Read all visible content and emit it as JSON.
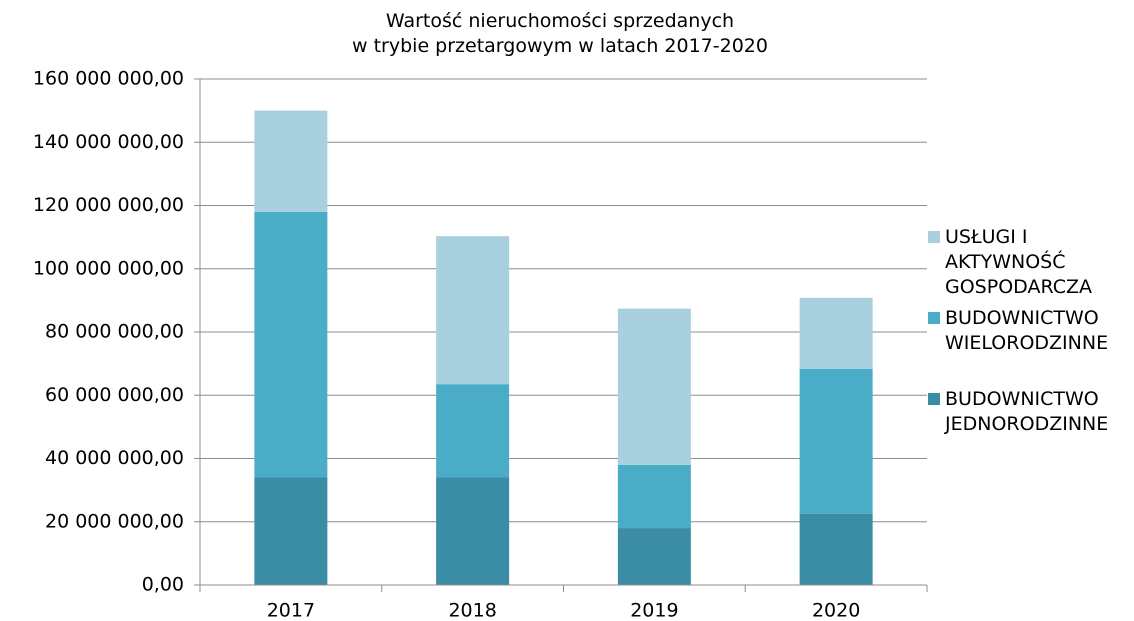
{
  "chart_data": {
    "type": "stacked_bar",
    "title": "Wartość nieruchomości sprzedanych\nw trybie przetargowym w latach 2017-2020",
    "categories": [
      "2017",
      "2018",
      "2019",
      "2020"
    ],
    "series": [
      {
        "name": "BUDOWNICTWO JEDNORODZINNE",
        "color": "#3b8ca5",
        "values": [
          34000000,
          34000000,
          18000000,
          22500000
        ]
      },
      {
        "name": "BUDOWNICTWO WIELORODZINNE",
        "color": "#4aacc6",
        "values": [
          84000000,
          29500000,
          20000000,
          45800000
        ]
      },
      {
        "name": "USŁUGI I AKTYWNOŚĆ GOSPODARCZA",
        "color": "#a9d0de",
        "values": [
          32000000,
          46800000,
          49400000,
          22500000
        ]
      }
    ],
    "ylim": [
      0,
      160000000
    ],
    "yticks": [
      {
        "value": 0,
        "label": "0,00"
      },
      {
        "value": 20000000,
        "label": "20 000 000,00"
      },
      {
        "value": 40000000,
        "label": "40 000 000,00"
      },
      {
        "value": 60000000,
        "label": "60 000 000,00"
      },
      {
        "value": 80000000,
        "label": "80 000 000,00"
      },
      {
        "value": 100000000,
        "label": "100 000 000,00"
      },
      {
        "value": 120000000,
        "label": "120 000 000,00"
      },
      {
        "value": 140000000,
        "label": "140 000 000,00"
      },
      {
        "value": 160000000,
        "label": "160 000 000,00"
      }
    ],
    "grid": true,
    "legend": "right"
  }
}
